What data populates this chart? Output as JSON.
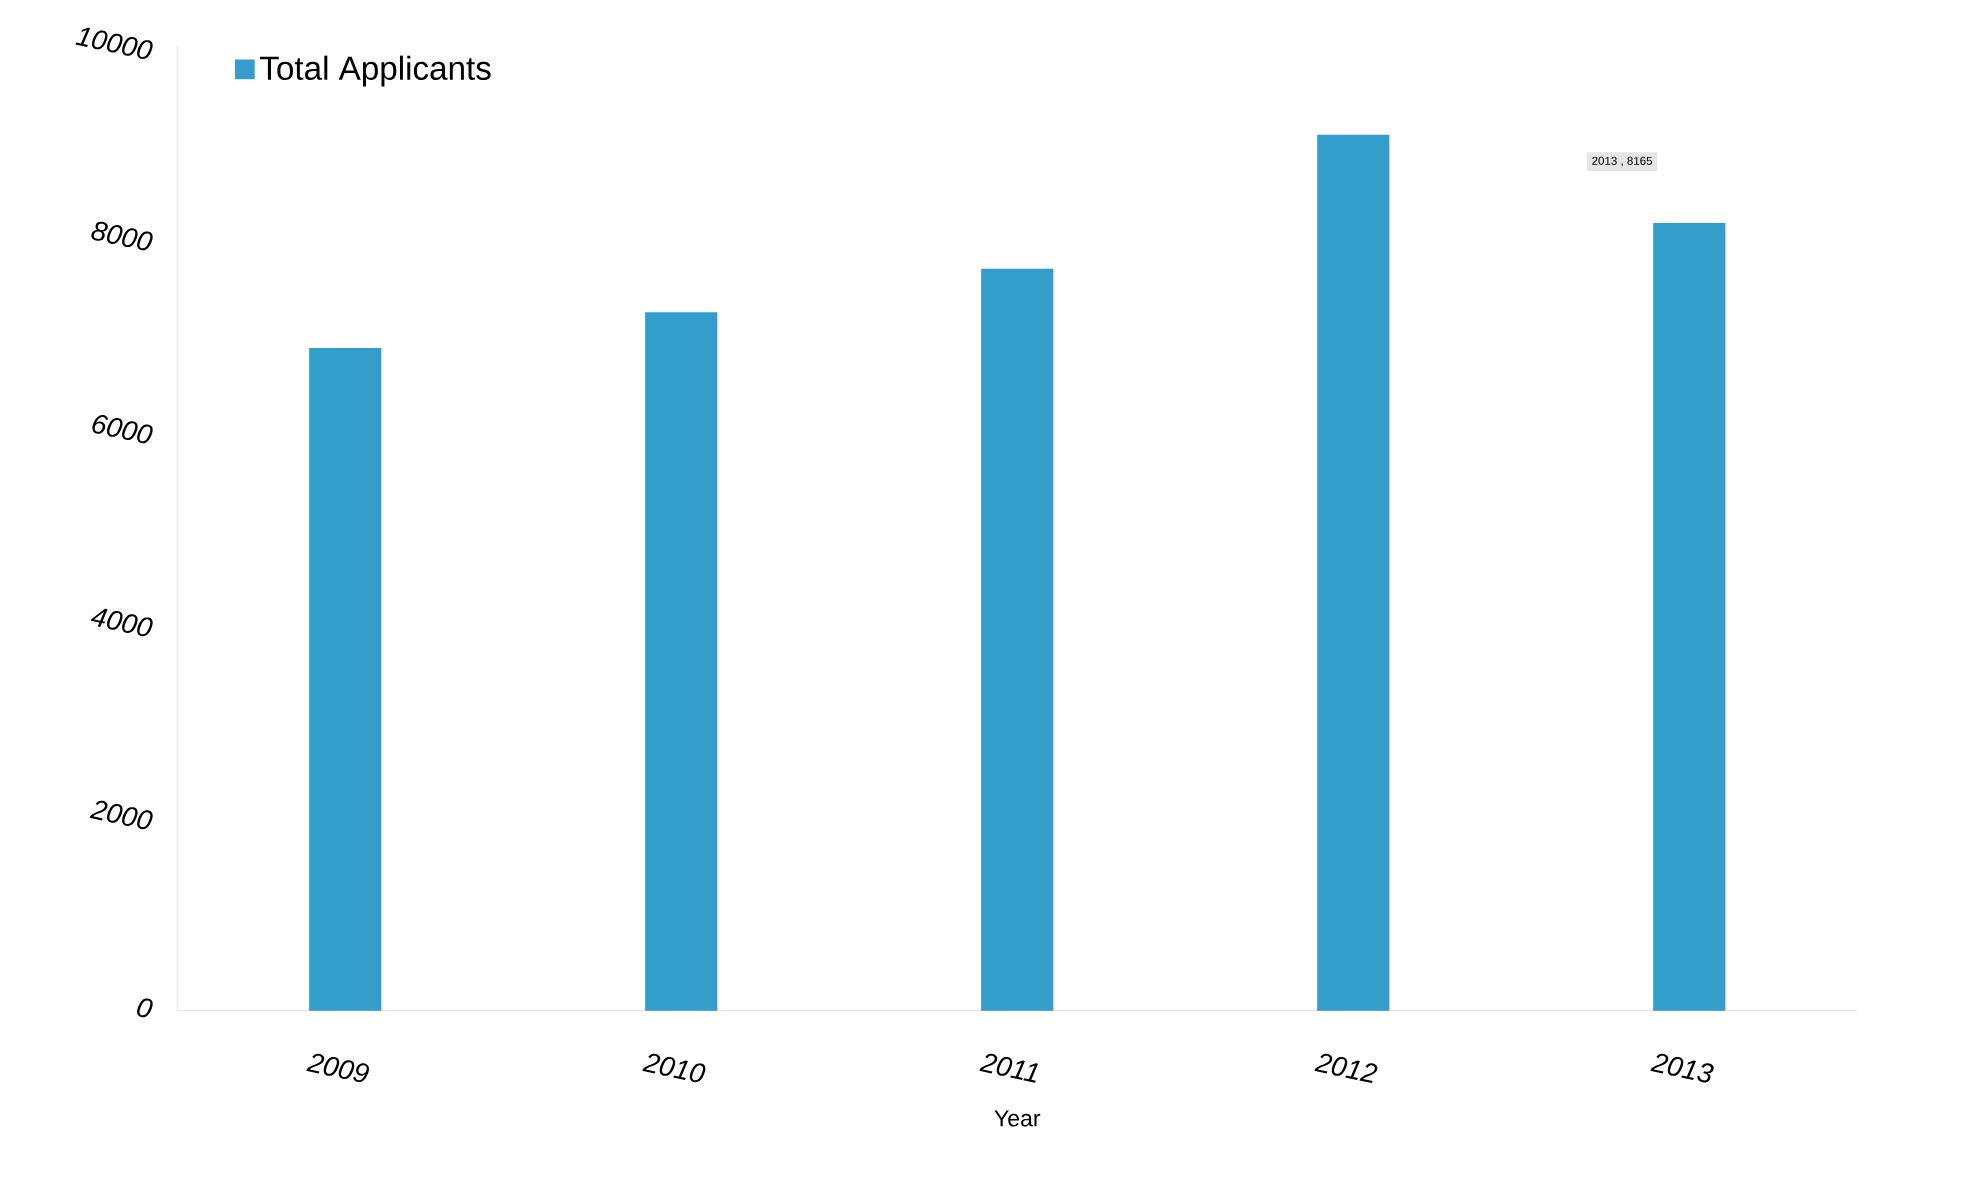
{
  "chart_data": {
    "type": "bar",
    "xlabel": "Year",
    "categories": [
      "2009",
      "2010",
      "2011",
      "2012",
      "2013"
    ],
    "series": [
      {
        "name": "Total Applicants",
        "color": "#339dcc",
        "values": [
          6870,
          7240,
          7690,
          9080,
          8165
        ]
      }
    ],
    "ylim": [
      0,
      10000
    ],
    "yticks": [
      0,
      2000,
      4000,
      6000,
      8000,
      10000
    ],
    "legend": "top left",
    "grid": false,
    "annotations": [
      "2013 , 8165"
    ]
  }
}
